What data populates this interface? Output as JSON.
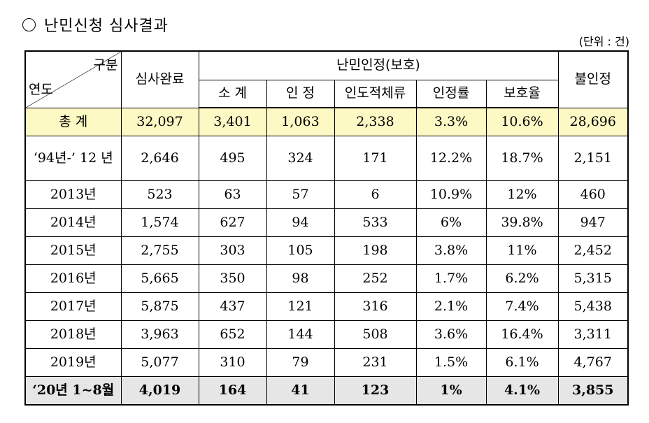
{
  "title": "난민신청 심사결과",
  "unit": "(단위 : 건)",
  "header": {
    "category": "구분",
    "year": "연도",
    "reviewed": "심사완료",
    "recognized_group": "난민인정(보호)",
    "rejected": "불인정",
    "sub": [
      "소 계",
      "인 정",
      "인도적체류",
      "인정률",
      "보호율"
    ]
  },
  "rows": [
    {
      "label": "총 계",
      "cells": [
        "32,097",
        "3,401",
        "1,063",
        "2,338",
        "3.3%",
        "10.6%",
        "28,696"
      ]
    },
    {
      "label": "‘94년-’ 12 년",
      "cells": [
        "2,646",
        "495",
        "324",
        "171",
        "12.2%",
        "18.7%",
        "2,151"
      ]
    },
    {
      "label": "2013년",
      "cells": [
        "523",
        "63",
        "57",
        "6",
        "10.9%",
        "12%",
        "460"
      ]
    },
    {
      "label": "2014년",
      "cells": [
        "1,574",
        "627",
        "94",
        "533",
        "6%",
        "39.8%",
        "947"
      ]
    },
    {
      "label": "2015년",
      "cells": [
        "2,755",
        "303",
        "105",
        "198",
        "3.8%",
        "11%",
        "2,452"
      ]
    },
    {
      "label": "2016년",
      "cells": [
        "5,665",
        "350",
        "98",
        "252",
        "1.7%",
        "6.2%",
        "5,315"
      ]
    },
    {
      "label": "2017년",
      "cells": [
        "5,875",
        "437",
        "121",
        "316",
        "2.1%",
        "7.4%",
        "5,438"
      ]
    },
    {
      "label": "2018년",
      "cells": [
        "3,963",
        "652",
        "144",
        "508",
        "3.6%",
        "16.4%",
        "3,311"
      ]
    },
    {
      "label": "2019년",
      "cells": [
        "5,077",
        "310",
        "79",
        "231",
        "1.5%",
        "6.1%",
        "4,767"
      ]
    },
    {
      "label": "‘20년 1~8월",
      "cells": [
        "4,019",
        "164",
        "41",
        "123",
        "1%",
        "4.1%",
        "3,855"
      ]
    }
  ]
}
